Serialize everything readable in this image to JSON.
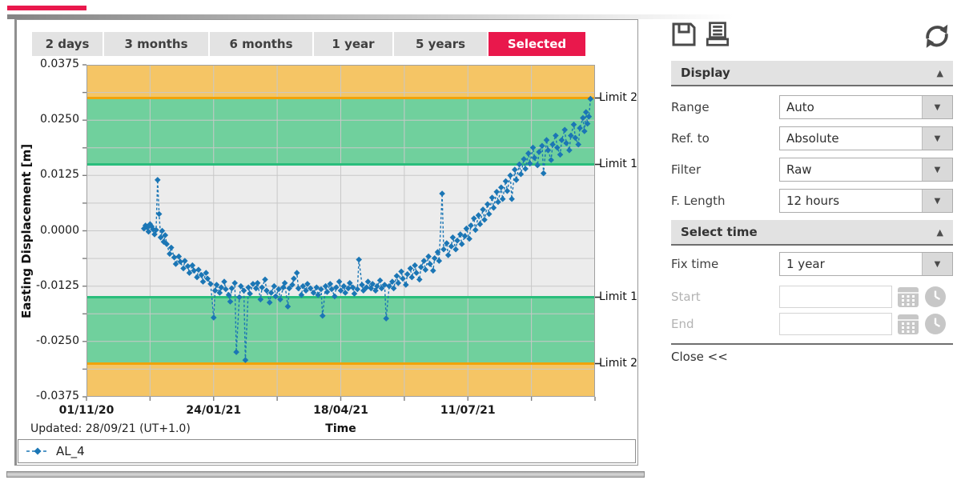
{
  "colors": {
    "accent_red": "#e9184c",
    "band_warning_orange": "#f5c565",
    "limit2_line_orange": "#f0a30a",
    "band_alert_green": "#70d09d",
    "limit1_line_green": "#2abe7c",
    "plot_background": "#ececec",
    "grid": "#c8c8c8",
    "series_blue": "#1b76b5"
  },
  "tabs": [
    {
      "label": "2 days",
      "selected": false
    },
    {
      "label": "3 months",
      "selected": false
    },
    {
      "label": "6 months",
      "selected": false
    },
    {
      "label": "1 year",
      "selected": false
    },
    {
      "label": "5 years",
      "selected": false
    },
    {
      "label": "Selected",
      "selected": true
    }
  ],
  "chart_data": {
    "type": "scatter",
    "series_name": "AL_4",
    "series_color": "#1b76b5",
    "ylabel": "Easting Displacement [m]",
    "xlabel": "Time",
    "updated_note": "Updated: 28/09/21 (UT+1.0)",
    "ylim": [
      -0.0375,
      0.0375
    ],
    "x_span_days": 336,
    "x_tick_positions": [
      0,
      0.25,
      0.5,
      0.75
    ],
    "x_tick_labels": [
      "01/11/20",
      "24/01/21",
      "18/04/21",
      "11/07/21"
    ],
    "y_ticks": [
      0.0375,
      0.025,
      0.0125,
      0,
      -0.0125,
      -0.025,
      -0.0375
    ],
    "y_tick_labels": [
      "0.0375",
      "0.0250",
      "0.0125",
      "0.0000",
      "-0.0125",
      "-0.0250",
      "-0.0375"
    ],
    "grid": {
      "v_step_fraction": 0.125,
      "h_step_value": 0.00625,
      "color": "#c8c8c8"
    },
    "bands": [
      {
        "from": 0.03,
        "to": 0.0375,
        "color": "#f5c565"
      },
      {
        "from": 0.015,
        "to": 0.03,
        "color": "#70d09d"
      },
      {
        "from": -0.015,
        "to": 0.015,
        "color": "#ececec"
      },
      {
        "from": -0.03,
        "to": -0.015,
        "color": "#70d09d"
      },
      {
        "from": -0.0375,
        "to": -0.03,
        "color": "#f5c565"
      }
    ],
    "limit_lines": [
      {
        "value": 0.03,
        "color": "#f0a30a"
      },
      {
        "value": 0.015,
        "color": "#2abe7c"
      },
      {
        "value": -0.015,
        "color": "#2abe7c"
      },
      {
        "value": -0.03,
        "color": "#f0a30a"
      }
    ],
    "limits": [
      {
        "label": "Limit 2",
        "value": 0.03
      },
      {
        "label": "Limit 1",
        "value": 0.015
      },
      {
        "label": "Limit 1",
        "value": -0.015
      },
      {
        "label": "Limit 2",
        "value": -0.03
      }
    ],
    "points": [
      [
        38,
        0.0005
      ],
      [
        39,
        0.0012
      ],
      [
        40,
        0.0008
      ],
      [
        41,
        -0.0002
      ],
      [
        42,
        0.0015
      ],
      [
        43,
        0.001
      ],
      [
        44,
        0.0003
      ],
      [
        45,
        -0.0008
      ],
      [
        46,
        0.0002
      ],
      [
        47,
        0.0115
      ],
      [
        48,
        0.0038
      ],
      [
        49,
        -0.0015
      ],
      [
        50,
        0
      ],
      [
        51,
        -0.0025
      ],
      [
        52,
        -0.001
      ],
      [
        53,
        -0.003
      ],
      [
        55,
        -0.0052
      ],
      [
        56,
        -0.0038
      ],
      [
        58,
        -0.006
      ],
      [
        59,
        -0.0075
      ],
      [
        61,
        -0.0058
      ],
      [
        62,
        -0.007
      ],
      [
        64,
        -0.0085
      ],
      [
        65,
        -0.0068
      ],
      [
        67,
        -0.008
      ],
      [
        68,
        -0.0095
      ],
      [
        70,
        -0.0078
      ],
      [
        71,
        -0.009
      ],
      [
        73,
        -0.0105
      ],
      [
        74,
        -0.0088
      ],
      [
        76,
        -0.01
      ],
      [
        77,
        -0.0115
      ],
      [
        79,
        -0.0095
      ],
      [
        80,
        -0.0108
      ],
      [
        82,
        -0.012
      ],
      [
        84,
        -0.0196
      ],
      [
        85,
        -0.0135
      ],
      [
        86,
        -0.0122
      ],
      [
        88,
        -0.014
      ],
      [
        89,
        -0.0128
      ],
      [
        91,
        -0.0115
      ],
      [
        92,
        -0.0132
      ],
      [
        94,
        -0.0145
      ],
      [
        95,
        -0.016
      ],
      [
        96,
        -0.013
      ],
      [
        98,
        -0.0118
      ],
      [
        99,
        -0.0274
      ],
      [
        101,
        -0.015
      ],
      [
        102,
        -0.0125
      ],
      [
        104,
        -0.0135
      ],
      [
        105,
        -0.0292
      ],
      [
        107,
        -0.0128
      ],
      [
        108,
        -0.0142
      ],
      [
        110,
        -0.012
      ],
      [
        112,
        -0.013
      ],
      [
        113,
        -0.0118
      ],
      [
        115,
        -0.0155
      ],
      [
        116,
        -0.0128
      ],
      [
        118,
        -0.011
      ],
      [
        119,
        -0.0135
      ],
      [
        121,
        -0.0162
      ],
      [
        122,
        -0.014
      ],
      [
        124,
        -0.0125
      ],
      [
        125,
        -0.0148
      ],
      [
        127,
        -0.0132
      ],
      [
        128,
        -0.0155
      ],
      [
        130,
        -0.0128
      ],
      [
        131,
        -0.0118
      ],
      [
        133,
        -0.0171
      ],
      [
        134,
        -0.013
      ],
      [
        136,
        -0.0122
      ],
      [
        137,
        -0.0108
      ],
      [
        139,
        -0.0095
      ],
      [
        140,
        -0.013
      ],
      [
        142,
        -0.0145
      ],
      [
        143,
        -0.0125
      ],
      [
        145,
        -0.0135
      ],
      [
        146,
        -0.012
      ],
      [
        148,
        -0.013
      ],
      [
        150,
        -0.014
      ],
      [
        152,
        -0.0128
      ],
      [
        153,
        -0.0145
      ],
      [
        155,
        -0.0132
      ],
      [
        156,
        -0.0192
      ],
      [
        158,
        -0.0125
      ],
      [
        159,
        -0.0138
      ],
      [
        161,
        -0.012
      ],
      [
        162,
        -0.0132
      ],
      [
        164,
        -0.0148
      ],
      [
        165,
        -0.0128
      ],
      [
        167,
        -0.0115
      ],
      [
        168,
        -0.0135
      ],
      [
        170,
        -0.0125
      ],
      [
        171,
        -0.014
      ],
      [
        173,
        -0.013
      ],
      [
        174,
        -0.0118
      ],
      [
        176,
        -0.0128
      ],
      [
        177,
        -0.0142
      ],
      [
        179,
        -0.0132
      ],
      [
        180,
        -0.0065
      ],
      [
        182,
        -0.0122
      ],
      [
        183,
        -0.0135
      ],
      [
        185,
        -0.0128
      ],
      [
        186,
        -0.0115
      ],
      [
        188,
        -0.013
      ],
      [
        189,
        -0.012
      ],
      [
        191,
        -0.0135
      ],
      [
        192,
        -0.0125
      ],
      [
        194,
        -0.0112
      ],
      [
        195,
        -0.013
      ],
      [
        197,
        -0.0122
      ],
      [
        198,
        -0.0198
      ],
      [
        200,
        -0.0125
      ],
      [
        202,
        -0.0115
      ],
      [
        203,
        -0.013
      ],
      [
        205,
        -0.0102
      ],
      [
        206,
        -0.0118
      ],
      [
        208,
        -0.0092
      ],
      [
        209,
        -0.0108
      ],
      [
        211,
        -0.0122
      ],
      [
        212,
        -0.0098
      ],
      [
        214,
        -0.0085
      ],
      [
        215,
        -0.0105
      ],
      [
        217,
        -0.0078
      ],
      [
        218,
        -0.0095
      ],
      [
        220,
        -0.011
      ],
      [
        221,
        -0.0082
      ],
      [
        223,
        -0.0068
      ],
      [
        224,
        -0.0088
      ],
      [
        226,
        -0.0058
      ],
      [
        227,
        -0.0075
      ],
      [
        229,
        -0.009
      ],
      [
        230,
        -0.0062
      ],
      [
        232,
        -0.0048
      ],
      [
        233,
        -0.0068
      ],
      [
        235,
        0.0084
      ],
      [
        236,
        -0.0042
      ],
      [
        238,
        -0.0028
      ],
      [
        239,
        -0.0055
      ],
      [
        241,
        -0.0035
      ],
      [
        242,
        -0.0015
      ],
      [
        244,
        -0.0042
      ],
      [
        245,
        -0.0022
      ],
      [
        247,
        -0.0008
      ],
      [
        248,
        -0.003
      ],
      [
        250,
        -0.0012
      ],
      [
        251,
        0.0005
      ],
      [
        253,
        -0.0018
      ],
      [
        254,
        0.0012
      ],
      [
        256,
        0.0028
      ],
      [
        257,
        0.0002
      ],
      [
        259,
        0.0035
      ],
      [
        260,
        0.0015
      ],
      [
        262,
        0.0048
      ],
      [
        263,
        0.0025
      ],
      [
        265,
        0.006
      ],
      [
        266,
        0.0038
      ],
      [
        268,
        0.0075
      ],
      [
        269,
        0.0052
      ],
      [
        271,
        0.0088
      ],
      [
        272,
        0.0065
      ],
      [
        274,
        0.0098
      ],
      [
        275,
        0.0072
      ],
      [
        277,
        0.0112
      ],
      [
        278,
        0.009
      ],
      [
        280,
        0.0125
      ],
      [
        281,
        0.0072
      ],
      [
        283,
        0.0138
      ],
      [
        284,
        0.0115
      ],
      [
        286,
        0.015
      ],
      [
        287,
        0.0128
      ],
      [
        289,
        0.0162
      ],
      [
        290,
        0.014
      ],
      [
        292,
        0.0175
      ],
      [
        293,
        0.0152
      ],
      [
        295,
        0.0188
      ],
      [
        296,
        0.0165
      ],
      [
        298,
        0.0148
      ],
      [
        299,
        0.0178
      ],
      [
        301,
        0.0192
      ],
      [
        302,
        0.013
      ],
      [
        304,
        0.0205
      ],
      [
        305,
        0.0182
      ],
      [
        307,
        0.016
      ],
      [
        308,
        0.0195
      ],
      [
        310,
        0.0215
      ],
      [
        311,
        0.0188
      ],
      [
        313,
        0.0172
      ],
      [
        314,
        0.0205
      ],
      [
        316,
        0.0228
      ],
      [
        317,
        0.0198
      ],
      [
        319,
        0.0182
      ],
      [
        320,
        0.0215
      ],
      [
        322,
        0.024
      ],
      [
        323,
        0.021
      ],
      [
        325,
        0.0195
      ],
      [
        326,
        0.0232
      ],
      [
        328,
        0.0255
      ],
      [
        329,
        0.0225
      ],
      [
        330,
        0.0268
      ],
      [
        331,
        0.0242
      ],
      [
        332,
        0.0258
      ],
      [
        333,
        0.0298
      ]
    ]
  },
  "panel": {
    "display": {
      "title": "Display",
      "rows": [
        {
          "label": "Range",
          "value": "Auto"
        },
        {
          "label": "Ref. to",
          "value": "Absolute"
        },
        {
          "label": "Filter",
          "value": "Raw"
        },
        {
          "label": "F. Length",
          "value": "12 hours"
        }
      ]
    },
    "select_time": {
      "title": "Select time",
      "fix": {
        "label": "Fix time",
        "value": "1 year"
      },
      "start_label": "Start",
      "end_label": "End",
      "start_value": "",
      "end_value": ""
    },
    "close_label": "Close <<"
  }
}
